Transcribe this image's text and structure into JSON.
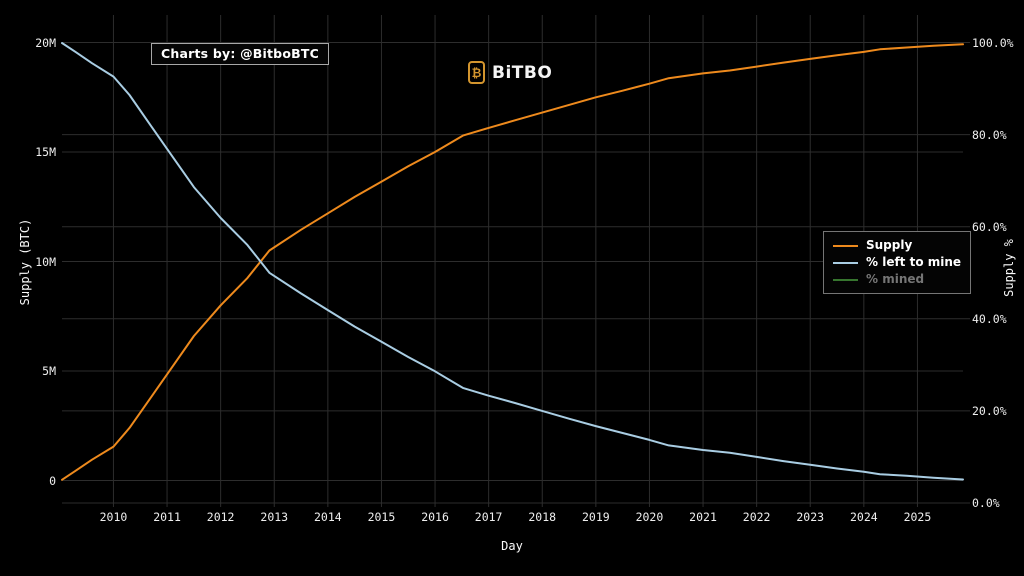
{
  "branding": {
    "badge_text": "Charts by: @BitboBTC",
    "logo_text": "BiTBO",
    "logo_symbol": "₿",
    "logo_color": "#d3952e"
  },
  "chart_data": {
    "type": "line",
    "xlabel": "Day",
    "ylabel_left": "Supply (BTC)",
    "ylabel_right": "Supply %",
    "x_axis": {
      "tick_years": [
        2010,
        2011,
        2012,
        2013,
        2014,
        2015,
        2016,
        2017,
        2018,
        2019,
        2020,
        2021,
        2022,
        2023,
        2024,
        2025
      ],
      "range": [
        2009.04,
        2025.85
      ]
    },
    "left_axis": {
      "ticks": [
        {
          "v": 0,
          "label": "0"
        },
        {
          "v": 5,
          "label": "5M"
        },
        {
          "v": 10,
          "label": "10M"
        },
        {
          "v": 15,
          "label": "15M"
        },
        {
          "v": 20,
          "label": "20M"
        }
      ],
      "range_millions": [
        0,
        20
      ]
    },
    "right_axis": {
      "ticks": [
        {
          "v": 0,
          "label": "0.0%"
        },
        {
          "v": 20,
          "label": "20.0%"
        },
        {
          "v": 40,
          "label": "40.0%"
        },
        {
          "v": 60,
          "label": "60.0%"
        },
        {
          "v": 80,
          "label": "80.0%"
        },
        {
          "v": 100,
          "label": "100.0%"
        }
      ],
      "range_percent": [
        0,
        100
      ]
    },
    "grid": {
      "on": true,
      "color": "#2d2d2d"
    },
    "legend": {
      "position": "right-middle",
      "items": [
        {
          "name": "Supply",
          "color": "#ee8a1d",
          "active": true
        },
        {
          "name": "% left to mine",
          "color": "#a9cde3",
          "active": true
        },
        {
          "name": "% mined",
          "color": "#37762f",
          "active": false
        }
      ]
    },
    "series": [
      {
        "name": "Supply",
        "axis": "left",
        "units": "million BTC",
        "color": "#ee8a1d",
        "points": [
          [
            2009.04,
            0.03
          ],
          [
            2009.3,
            0.45
          ],
          [
            2009.6,
            0.95
          ],
          [
            2010,
            1.55
          ],
          [
            2010.3,
            2.4
          ],
          [
            2010.7,
            3.8
          ],
          [
            2011,
            4.85
          ],
          [
            2011.5,
            6.6
          ],
          [
            2012,
            8.0
          ],
          [
            2012.5,
            9.25
          ],
          [
            2012.91,
            10.5
          ],
          [
            2013.5,
            11.45
          ],
          [
            2014,
            12.2
          ],
          [
            2014.5,
            12.95
          ],
          [
            2015,
            13.65
          ],
          [
            2015.5,
            14.35
          ],
          [
            2016,
            15.0
          ],
          [
            2016.52,
            15.75
          ],
          [
            2017,
            16.1
          ],
          [
            2017.5,
            16.45
          ],
          [
            2018,
            16.8
          ],
          [
            2018.5,
            17.15
          ],
          [
            2019,
            17.5
          ],
          [
            2019.5,
            17.8
          ],
          [
            2020,
            18.12
          ],
          [
            2020.36,
            18.37
          ],
          [
            2021,
            18.59
          ],
          [
            2021.5,
            18.72
          ],
          [
            2022,
            18.9
          ],
          [
            2022.5,
            19.08
          ],
          [
            2023,
            19.25
          ],
          [
            2023.5,
            19.42
          ],
          [
            2024,
            19.57
          ],
          [
            2024.3,
            19.69
          ],
          [
            2024.8,
            19.77
          ],
          [
            2025.3,
            19.85
          ],
          [
            2025.85,
            19.92
          ]
        ]
      },
      {
        "name": "% left to mine",
        "axis": "right",
        "units": "percent",
        "color": "#a9cde3",
        "points": [
          [
            2009.04,
            99.9
          ],
          [
            2009.3,
            97.9
          ],
          [
            2009.6,
            95.5
          ],
          [
            2010,
            92.6
          ],
          [
            2010.3,
            88.6
          ],
          [
            2010.7,
            81.9
          ],
          [
            2011,
            76.9
          ],
          [
            2011.5,
            68.6
          ],
          [
            2012,
            61.9
          ],
          [
            2012.5,
            56.0
          ],
          [
            2012.91,
            50.0
          ],
          [
            2013.5,
            45.5
          ],
          [
            2014,
            41.9
          ],
          [
            2014.5,
            38.3
          ],
          [
            2015,
            35.0
          ],
          [
            2015.5,
            31.7
          ],
          [
            2016,
            28.6
          ],
          [
            2016.52,
            25.0
          ],
          [
            2017,
            23.3
          ],
          [
            2017.5,
            21.7
          ],
          [
            2018,
            20.0
          ],
          [
            2018.5,
            18.3
          ],
          [
            2019,
            16.7
          ],
          [
            2019.5,
            15.2
          ],
          [
            2020,
            13.7
          ],
          [
            2020.36,
            12.5
          ],
          [
            2021,
            11.5
          ],
          [
            2021.5,
            10.9
          ],
          [
            2022,
            10.0
          ],
          [
            2022.5,
            9.1
          ],
          [
            2023,
            8.3
          ],
          [
            2023.5,
            7.5
          ],
          [
            2024,
            6.8
          ],
          [
            2024.3,
            6.25
          ],
          [
            2024.8,
            5.9
          ],
          [
            2025.3,
            5.5
          ],
          [
            2025.85,
            5.1
          ]
        ]
      }
    ]
  }
}
